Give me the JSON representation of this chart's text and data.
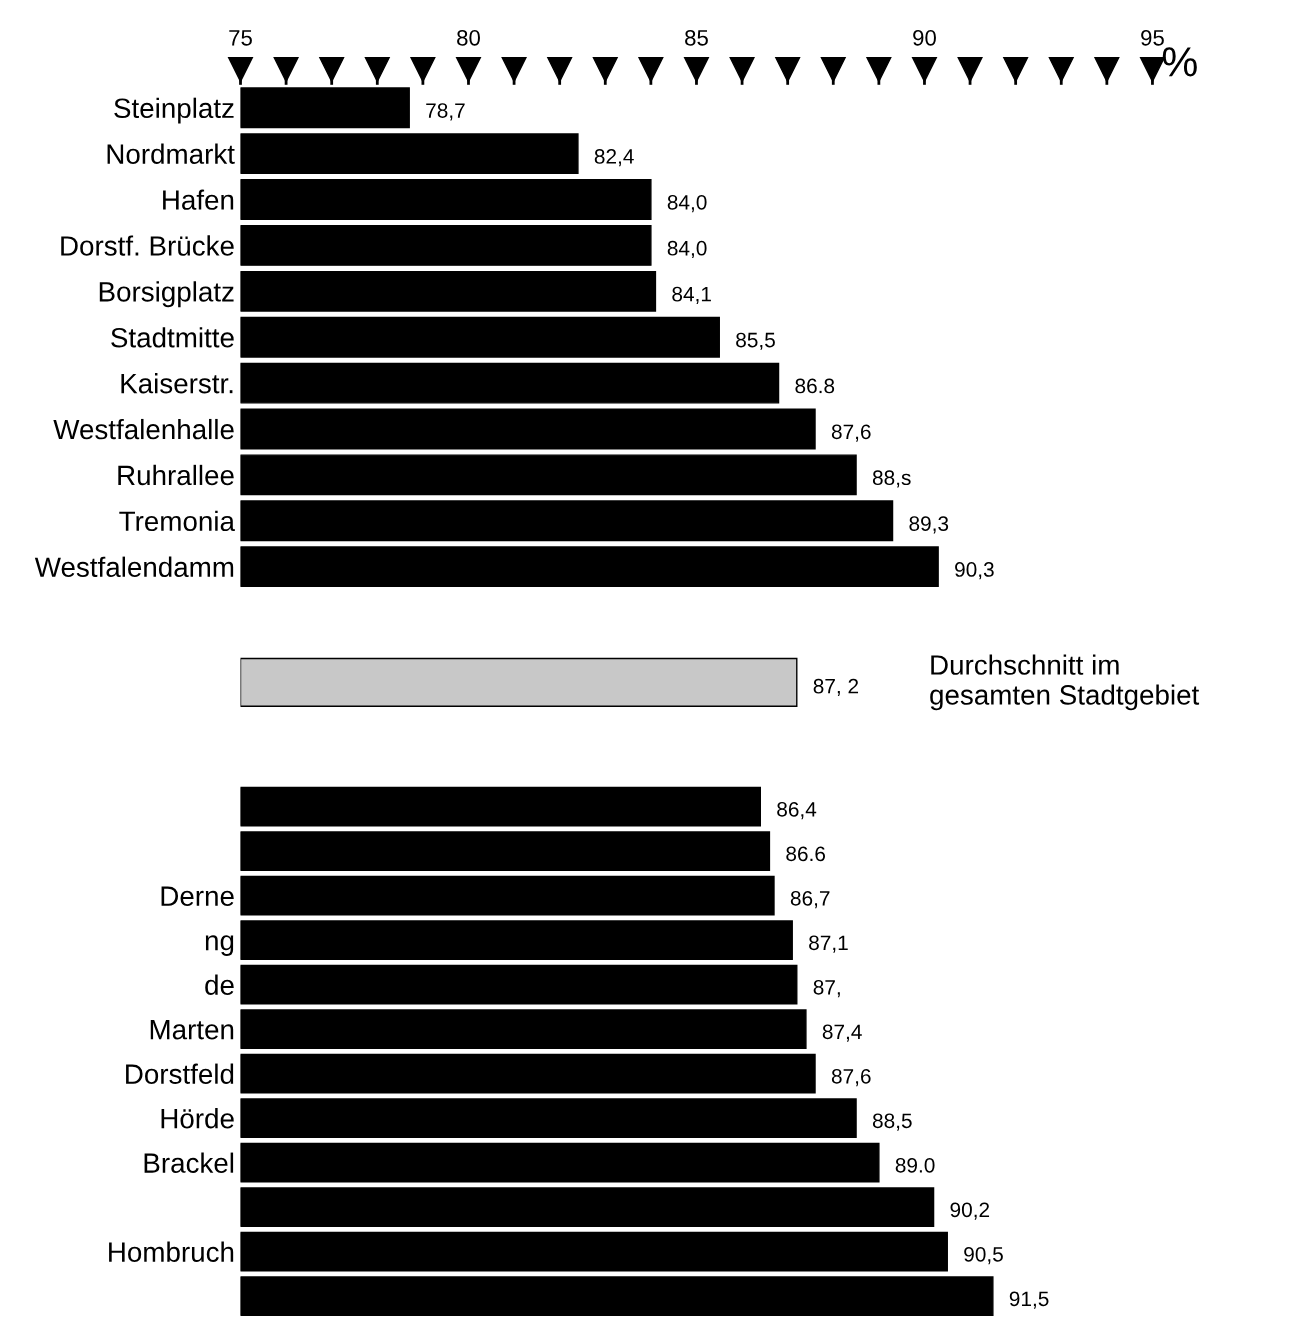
{
  "chart_data": [
    {
      "type": "bar",
      "orientation": "horizontal",
      "xlabel": "%",
      "categories": [
        "Steinplatz",
        "Nordmarkt",
        "Hafen",
        "Dorstf. Brücke",
        "Borsigplatz",
        "Stadtmitte",
        "Kaiserstr.",
        "Westfalenhalle",
        "Ruhrallee",
        "Tremonia",
        "Westfalendamm"
      ],
      "values": [
        78.7,
        82.4,
        84.0,
        84.0,
        84.1,
        85.5,
        86.8,
        87.6,
        88.5,
        89.3,
        90.3
      ],
      "value_labels": [
        "78,7",
        "82,4",
        "84,0",
        "84,0",
        "84,1",
        "85,5",
        "86.8",
        "87,6",
        "88,s",
        "89,3",
        "90,3"
      ],
      "color": "#000000",
      "xlim": [
        75,
        95
      ],
      "xticks": [
        75,
        {
          "value": 76,
          "label": null
        },
        {
          "value": 77,
          "label": null
        },
        {
          "value": 78,
          "label": null
        },
        {
          "value": 79,
          "label": null
        },
        80,
        {
          "value": 81,
          "label": null
        },
        {
          "value": 82,
          "label": null
        },
        {
          "value": 83,
          "label": null
        },
        {
          "value": 84,
          "label": null
        },
        85,
        {
          "value": 86,
          "label": null
        },
        {
          "value": 87,
          "label": null
        },
        {
          "value": 88,
          "label": null
        },
        {
          "value": 89,
          "label": null
        },
        90,
        {
          "value": 91,
          "label": null
        },
        {
          "value": 92,
          "label": null
        },
        {
          "value": 93,
          "label": null
        },
        {
          "value": 94,
          "label": null
        },
        95
      ],
      "grid": false
    },
    {
      "type": "bar",
      "orientation": "horizontal",
      "categories": [
        null
      ],
      "values": [
        87.2
      ],
      "value_labels": [
        "87, 2"
      ],
      "color": "#c8c8c8",
      "xlim": [
        75,
        95
      ],
      "tick_labels": false,
      "annotations": [
        "Durchschnitt im\ngesamten Stadtgebiet"
      ],
      "grid": false
    },
    {
      "type": "bar",
      "orientation": "horizontal",
      "categories": [
        null,
        null,
        "Derne",
        "ng",
        "de",
        "Marten",
        "Dorstfeld",
        "Hörde",
        "Brackel",
        null,
        "Hombruch",
        null
      ],
      "values": [
        86.4,
        86.6,
        86.7,
        87.1,
        87.2,
        87.4,
        87.6,
        88.5,
        89.0,
        90.2,
        90.5,
        91.5
      ],
      "value_labels": [
        "86,4",
        "86.6",
        "86,7",
        "87,1",
        "87,",
        "87,4",
        "87,6",
        "88,5",
        "89.0",
        "90,2",
        "90,5",
        "91,5"
      ],
      "color": "#000000",
      "xlim": [
        75,
        95
      ],
      "tick_labels": "y",
      "grid": false
    }
  ]
}
